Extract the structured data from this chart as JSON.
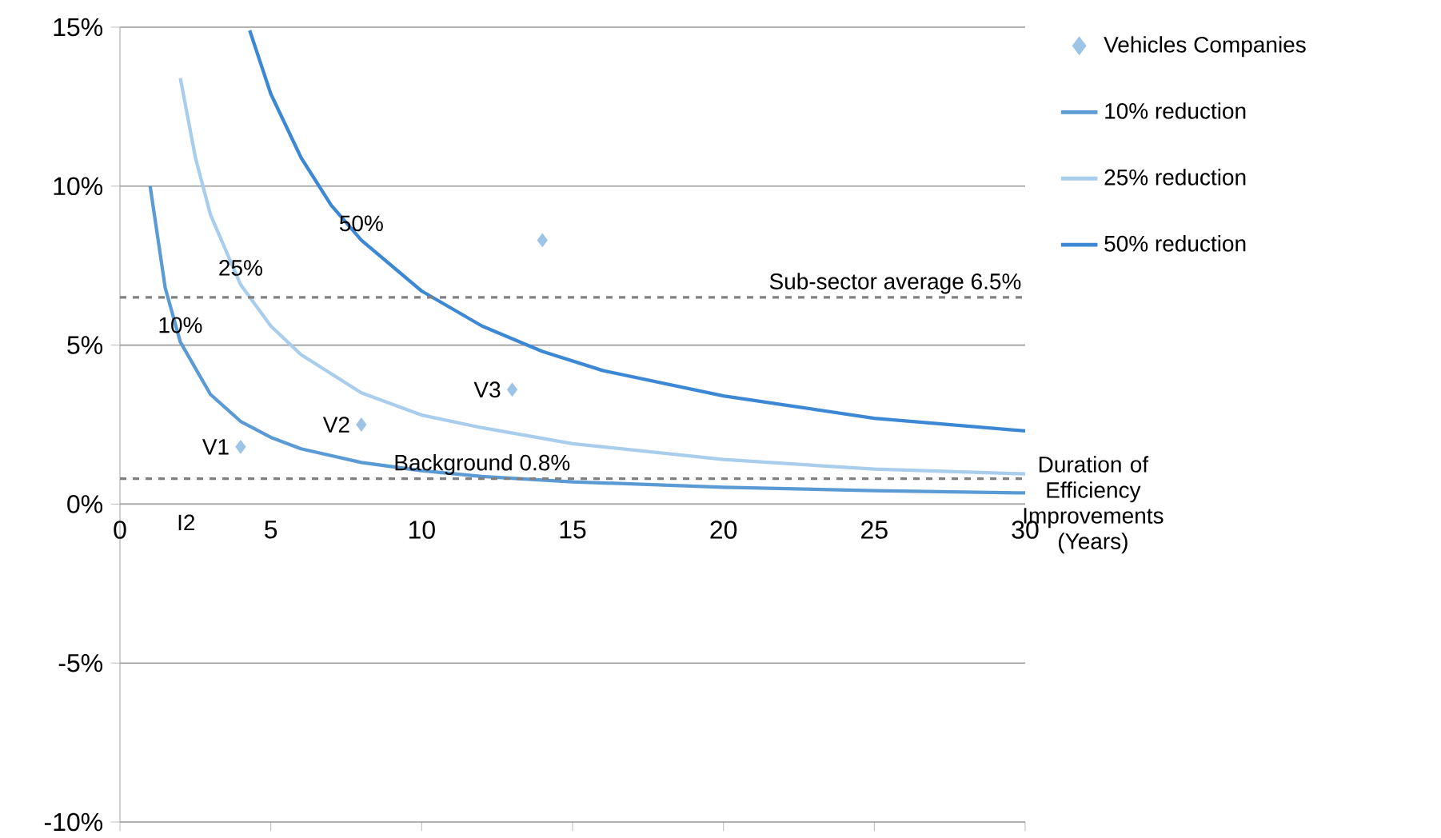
{
  "chart_data": {
    "type": "line",
    "xlabel": "Duration of Efficiency Improvements (Years)",
    "xlim": [
      0,
      30
    ],
    "xticks": [
      0,
      5,
      10,
      15,
      20,
      25,
      30
    ],
    "ylim": [
      -10,
      15
    ],
    "yticks": [
      {
        "value": -10,
        "label": "-10%"
      },
      {
        "value": -5,
        "label": "-5%"
      },
      {
        "value": 0,
        "label": "0%"
      },
      {
        "value": 5,
        "label": "5%"
      },
      {
        "value": 10,
        "label": "10%"
      },
      {
        "value": 15,
        "label": "15%"
      }
    ],
    "grid": "y",
    "legend": "right",
    "series": [
      {
        "name": "Vehicles Companies",
        "type": "scatter",
        "marker": "diamond",
        "color": "#9dc3e6",
        "x": [
          4,
          8,
          13,
          14
        ],
        "values": [
          1.8,
          2.5,
          3.6,
          8.3
        ]
      },
      {
        "name": "10% reduction",
        "color": "#5b9bd5",
        "x": [
          1,
          1.5,
          2,
          3,
          4,
          5,
          6,
          8,
          10,
          12,
          15,
          20,
          25,
          30
        ],
        "values": [
          10.0,
          6.8,
          5.1,
          3.45,
          2.6,
          2.1,
          1.74,
          1.31,
          1.05,
          0.87,
          0.7,
          0.53,
          0.42,
          0.35
        ]
      },
      {
        "name": "25% reduction",
        "color": "#a9cdec",
        "x": [
          2,
          2.5,
          3,
          4,
          5,
          6,
          8,
          10,
          12,
          15,
          20,
          25,
          30
        ],
        "values": [
          13.4,
          10.9,
          9.1,
          6.9,
          5.6,
          4.7,
          3.5,
          2.8,
          2.4,
          1.9,
          1.4,
          1.1,
          0.95
        ]
      },
      {
        "name": "50% reduction",
        "color": "#3d88d4",
        "x": [
          4.3,
          5,
          6,
          7,
          8,
          10,
          12,
          14,
          16,
          20,
          25,
          30
        ],
        "values": [
          14.9,
          12.9,
          10.9,
          9.4,
          8.3,
          6.7,
          5.6,
          4.8,
          4.2,
          3.4,
          2.7,
          2.3
        ]
      }
    ],
    "ref_lines": [
      {
        "axis": "y",
        "value": 6.5,
        "label": "Sub-sector average 6.5%",
        "color": "#808080",
        "line_style": "dashed"
      },
      {
        "axis": "y",
        "value": 0.8,
        "label": "Background 0.8%",
        "color": "#808080",
        "line_style": "dashed"
      }
    ],
    "annotations": [
      {
        "text": "10%",
        "x": 2,
        "y": 5.1
      },
      {
        "text": "25%",
        "x": 4,
        "y": 6.9
      },
      {
        "text": "50%",
        "x": 8,
        "y": 8.3
      },
      {
        "text": "V1",
        "x": 4,
        "y": 1.8
      },
      {
        "text": "V2",
        "x": 8,
        "y": 2.5
      },
      {
        "text": "V3",
        "x": 13,
        "y": 3.6
      },
      "I2"
    ]
  }
}
